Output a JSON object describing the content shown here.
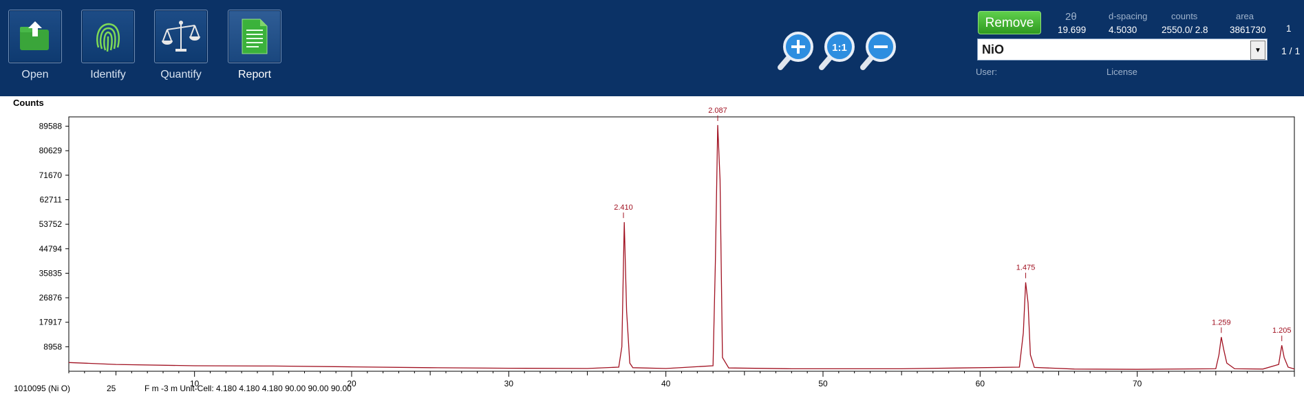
{
  "toolbar": {
    "tools": [
      {
        "label": "Open",
        "icon": "open-folder-icon"
      },
      {
        "label": "Identify",
        "icon": "fingerprint-icon"
      },
      {
        "label": "Quantify",
        "icon": "balance-scale-icon"
      },
      {
        "label": "Report",
        "icon": "report-document-icon"
      }
    ],
    "zoom": [
      "zoom-in-icon",
      "zoom-reset-icon",
      "zoom-out-icon"
    ],
    "zoom_reset_label": "1:1"
  },
  "peak_info": {
    "remove_label": "Remove",
    "headers": {
      "two_theta": "2θ",
      "d_spacing": "d-spacing",
      "counts": "counts",
      "area": "area"
    },
    "values": {
      "two_theta": "19.699",
      "d_spacing": "4.5030",
      "counts": "2550.0/ 2.8",
      "area": "3861730",
      "index": "1"
    },
    "phase_selected": "NiO",
    "phase_pager": "1 / 1",
    "user_label": "User:",
    "license_label": "License"
  },
  "chart_data": {
    "type": "line",
    "ylabel": "Counts",
    "xlim": [
      2,
      80
    ],
    "ylim": [
      0,
      93000
    ],
    "y_ticks": [
      8958,
      17917,
      26876,
      35835,
      44794,
      53752,
      62711,
      71670,
      80629,
      89588
    ],
    "x_ticks": [
      10,
      20,
      30,
      40,
      50,
      60,
      70
    ],
    "line_color": "#a01020",
    "series": [
      {
        "x": [
          2,
          5,
          10,
          15,
          20,
          25,
          30,
          35,
          37.0,
          37.2,
          37.35,
          37.5,
          37.7,
          37.9,
          40,
          43.0,
          43.15,
          43.3,
          43.45,
          43.6,
          44.0,
          48,
          55,
          62.5,
          62.75,
          62.9,
          63.05,
          63.2,
          63.45,
          66,
          70,
          75,
          75.2,
          75.35,
          75.5,
          75.7,
          76.2,
          78,
          79.0,
          79.2,
          79.35,
          79.6,
          80
        ],
        "y": [
          3200,
          2500,
          2000,
          1900,
          1600,
          1300,
          1100,
          1000,
          1500,
          9000,
          54500,
          22000,
          3000,
          1300,
          1000,
          2000,
          40000,
          90000,
          70000,
          5000,
          1200,
          900,
          900,
          1500,
          14000,
          32500,
          25000,
          6000,
          1400,
          800,
          700,
          900,
          6000,
          12500,
          8000,
          3000,
          900,
          800,
          2500,
          9500,
          5000,
          1500,
          800
        ]
      }
    ],
    "peak_labels": [
      {
        "x": 37.3,
        "y": 54500,
        "text": "2.410"
      },
      {
        "x": 43.3,
        "y": 90000,
        "text": "2.087"
      },
      {
        "x": 62.9,
        "y": 32500,
        "text": "1.475"
      },
      {
        "x": 75.35,
        "y": 12500,
        "text": "1.259"
      },
      {
        "x": 79.2,
        "y": 9500,
        "text": "1.205"
      }
    ]
  },
  "footer": {
    "card_id": "1010095  (Ni O)",
    "score": "25",
    "cell": "F m -3 m Unit-Cell: 4.180 4.180 4.180 90.00 90.00 90.00"
  }
}
